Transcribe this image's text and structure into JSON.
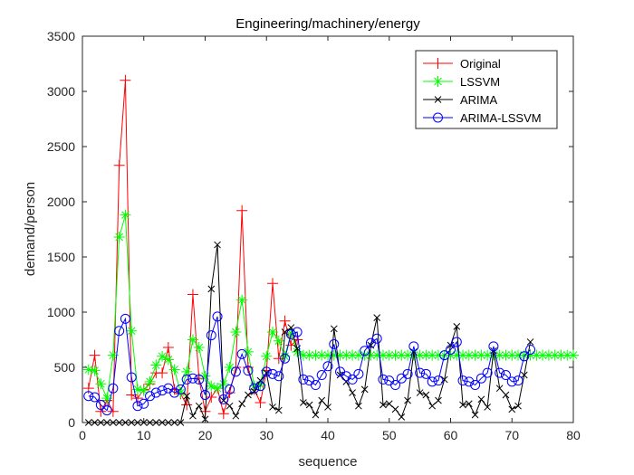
{
  "chart_data": {
    "type": "line",
    "title": "Engineering/machinery/energy",
    "xlabel": "sequence",
    "ylabel": "demand/person",
    "xlim": [
      0,
      80
    ],
    "ylim": [
      0,
      3500
    ],
    "xticks": [
      0,
      10,
      20,
      30,
      40,
      50,
      60,
      70,
      80
    ],
    "yticks": [
      0,
      500,
      1000,
      1500,
      2000,
      2500,
      3000,
      3500
    ],
    "grid": false,
    "legend_position": "top-right",
    "series": [
      {
        "name": "Original",
        "color": "#ff0000",
        "marker": "plus",
        "x": [
          1,
          2,
          3,
          4,
          5,
          6,
          7,
          8,
          9,
          10,
          11,
          12,
          13,
          14,
          15,
          16,
          17,
          18,
          19,
          20,
          21,
          22,
          23,
          24,
          25,
          26,
          27,
          28,
          29,
          30,
          31,
          32,
          33,
          34,
          35
        ],
        "values": [
          310,
          610,
          100,
          200,
          100,
          2330,
          3100,
          250,
          220,
          300,
          350,
          450,
          450,
          680,
          300,
          260,
          160,
          1160,
          400,
          100,
          230,
          310,
          80,
          270,
          500,
          1920,
          500,
          300,
          180,
          470,
          1260,
          580,
          920,
          700,
          750
        ]
      },
      {
        "name": "LSSVM",
        "color": "#00ff00",
        "marker": "star",
        "x": [
          1,
          2,
          3,
          4,
          5,
          6,
          7,
          8,
          9,
          10,
          11,
          12,
          13,
          14,
          15,
          16,
          17,
          18,
          19,
          20,
          21,
          22,
          23,
          24,
          25,
          26,
          27,
          28,
          29,
          30,
          31,
          32,
          33,
          34,
          35,
          36,
          37,
          38,
          39,
          40,
          41,
          42,
          43,
          44,
          45,
          46,
          47,
          48,
          49,
          50,
          51,
          52,
          53,
          54,
          55,
          56,
          57,
          58,
          59,
          60,
          61,
          62,
          63,
          64,
          65,
          66,
          67,
          68,
          69,
          70,
          71,
          72,
          73,
          74,
          75,
          76,
          77,
          78,
          79,
          80
        ],
        "values": [
          480,
          470,
          350,
          220,
          610,
          1680,
          1880,
          830,
          300,
          290,
          370,
          520,
          600,
          570,
          480,
          270,
          460,
          750,
          680,
          420,
          330,
          310,
          350,
          500,
          820,
          1110,
          640,
          330,
          340,
          600,
          820,
          740,
          600,
          810,
          640,
          610,
          610,
          610,
          610,
          610,
          610,
          610,
          610,
          610,
          610,
          610,
          610,
          610,
          610,
          610,
          610,
          610,
          610,
          610,
          610,
          610,
          610,
          610,
          610,
          610,
          610,
          610,
          610,
          610,
          610,
          610,
          610,
          610,
          610,
          610,
          610,
          610,
          610,
          610,
          610,
          610,
          610,
          610,
          610,
          610
        ]
      },
      {
        "name": "ARIMA",
        "color": "#000000",
        "marker": "cross",
        "x": [
          1,
          2,
          3,
          4,
          5,
          6,
          7,
          8,
          9,
          10,
          11,
          12,
          13,
          14,
          15,
          16,
          17,
          18,
          19,
          20,
          21,
          22,
          23,
          24,
          25,
          26,
          27,
          28,
          29,
          30,
          31,
          32,
          33,
          34,
          35,
          36,
          37,
          38,
          39,
          40,
          41,
          42,
          43,
          44,
          45,
          46,
          47,
          48,
          49,
          50,
          51,
          52,
          53,
          54,
          55,
          56,
          57,
          58,
          59,
          60,
          61,
          62,
          63,
          64,
          65,
          66,
          67,
          68,
          69,
          70,
          71,
          72,
          73
        ],
        "values": [
          0,
          0,
          0,
          0,
          0,
          0,
          0,
          0,
          0,
          0,
          0,
          0,
          0,
          0,
          0,
          0,
          240,
          60,
          150,
          30,
          1210,
          1610,
          200,
          150,
          60,
          170,
          250,
          280,
          380,
          450,
          140,
          110,
          820,
          860,
          670,
          180,
          160,
          70,
          200,
          140,
          850,
          430,
          370,
          270,
          150,
          300,
          700,
          950,
          160,
          170,
          120,
          50,
          200,
          640,
          270,
          250,
          150,
          200,
          390,
          700,
          870,
          160,
          170,
          70,
          210,
          140,
          650,
          310,
          250,
          120,
          150,
          430,
          730
        ]
      },
      {
        "name": "ARIMA-LSSVM",
        "color": "#0000ff",
        "marker": "circle",
        "x": [
          1,
          2,
          3,
          4,
          5,
          6,
          7,
          8,
          9,
          10,
          11,
          12,
          13,
          14,
          15,
          16,
          17,
          18,
          19,
          20,
          21,
          22,
          23,
          24,
          25,
          26,
          27,
          28,
          29,
          30,
          31,
          32,
          33,
          34,
          35,
          36,
          37,
          38,
          39,
          40,
          41,
          42,
          43,
          44,
          45,
          46,
          47,
          48,
          49,
          50,
          51,
          52,
          53,
          54,
          55,
          56,
          57,
          58,
          59,
          60,
          61,
          62,
          63,
          64,
          65,
          66,
          67,
          68,
          69,
          70,
          71,
          72,
          73
        ],
        "values": [
          240,
          230,
          160,
          110,
          310,
          830,
          940,
          410,
          150,
          170,
          240,
          270,
          290,
          310,
          270,
          300,
          390,
          400,
          390,
          250,
          790,
          960,
          210,
          300,
          460,
          620,
          470,
          310,
          330,
          460,
          440,
          420,
          580,
          800,
          820,
          390,
          380,
          340,
          430,
          510,
          710,
          460,
          420,
          390,
          440,
          650,
          720,
          760,
          390,
          380,
          340,
          400,
          440,
          690,
          450,
          440,
          370,
          380,
          610,
          660,
          730,
          380,
          370,
          340,
          400,
          450,
          690,
          450,
          430,
          370,
          380,
          600,
          660
        ]
      }
    ]
  }
}
